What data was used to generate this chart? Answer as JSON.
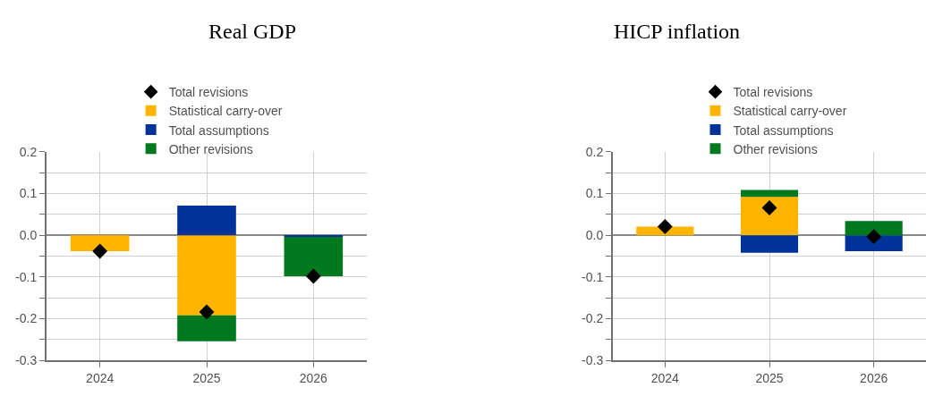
{
  "chart_data": [
    {
      "type": "bar",
      "title": "Real GDP",
      "stacked": true,
      "categories": [
        "2024",
        "2025",
        "2026"
      ],
      "series": [
        {
          "name": "Statistical carry-over",
          "color": "#ffb400",
          "values": [
            -0.038,
            -0.192,
            0.0
          ]
        },
        {
          "name": "Total assumptions",
          "color": "#003299",
          "values": [
            0.0,
            0.071,
            -0.004
          ]
        },
        {
          "name": "Other revisions",
          "color": "#00781e",
          "values": [
            0.0,
            -0.062,
            -0.094
          ]
        },
        {
          "name": "Total revisions",
          "type": "scatter",
          "marker": "diamond",
          "color": "#000000",
          "values": [
            -0.038,
            -0.184,
            -0.098
          ]
        }
      ],
      "ylim": [
        -0.3,
        0.2
      ],
      "yticks": [
        -0.3,
        {
          "value": -0.25,
          "label": null
        },
        -0.2,
        {
          "value": -0.15,
          "label": null
        },
        -0.1,
        {
          "value": -0.05,
          "label": null
        },
        {
          "value": 0,
          "label": "0.0"
        },
        {
          "value": 0.05,
          "label": null
        },
        0.1,
        {
          "value": 0.15,
          "label": null
        },
        0.2
      ],
      "grid": true,
      "legend": "top"
    },
    {
      "type": "bar",
      "title": "HICP inflation",
      "stacked": true,
      "categories": [
        "2024",
        "2025",
        "2026"
      ],
      "series": [
        {
          "name": "Statistical carry-over",
          "color": "#ffb400",
          "values": [
            0.021,
            0.092,
            0.0
          ]
        },
        {
          "name": "Total assumptions",
          "color": "#003299",
          "values": [
            0.0,
            -0.042,
            -0.038
          ]
        },
        {
          "name": "Other revisions",
          "color": "#00781e",
          "values": [
            0.0,
            0.017,
            0.034
          ]
        },
        {
          "name": "Total revisions",
          "type": "scatter",
          "marker": "diamond",
          "color": "#000000",
          "values": [
            0.021,
            0.066,
            -0.003
          ]
        }
      ],
      "ylim": [
        -0.3,
        0.2
      ],
      "yticks": [
        -0.3,
        {
          "value": -0.25,
          "label": null
        },
        -0.2,
        {
          "value": -0.15,
          "label": null
        },
        -0.1,
        {
          "value": -0.05,
          "label": null
        },
        {
          "value": 0,
          "label": "0.0"
        },
        {
          "value": 0.05,
          "label": null
        },
        0.1,
        {
          "value": 0.15,
          "label": null
        },
        0.2
      ],
      "grid": true,
      "legend": "top"
    }
  ]
}
